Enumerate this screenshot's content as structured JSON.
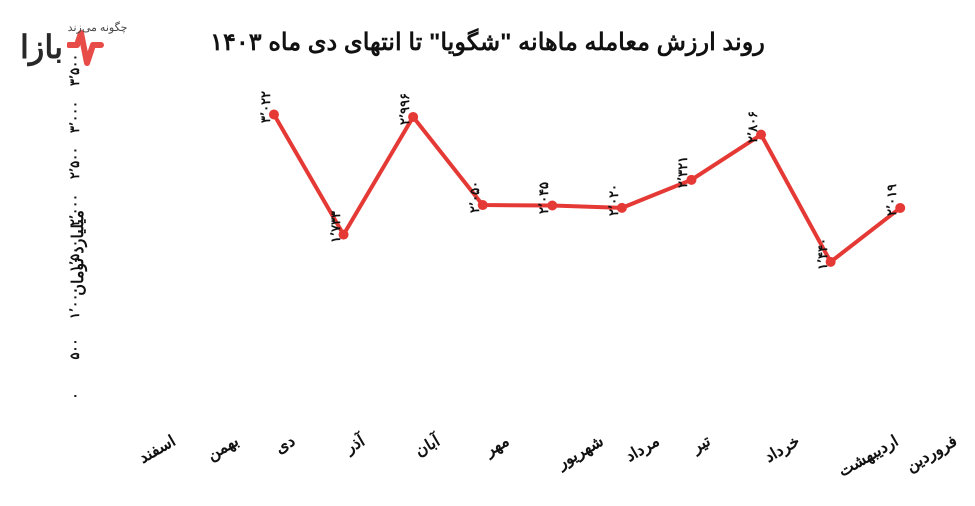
{
  "watermark": {
    "main": "بازا",
    "sub": "چگونه می‌زند"
  },
  "chart": {
    "type": "line",
    "title": "روند ارزش معامله ماهانه \"شگویا\" تا انتهای دی ماه ۱۴۰۳",
    "y_axis_label": "میلیارد تومان",
    "line_color": "#e53935",
    "line_width": 4,
    "marker_color": "#e53935",
    "marker_size": 5,
    "background_color": "#ffffff",
    "text_color": "#111111",
    "ylim": [
      0,
      3500
    ],
    "ytick_step": 500,
    "yticks": [
      {
        "v": 0,
        "label": "۰"
      },
      {
        "v": 500,
        "label": "۵۰۰"
      },
      {
        "v": 1000,
        "label": "۱٬۰۰۰"
      },
      {
        "v": 1500,
        "label": "۱٬۵۰۰"
      },
      {
        "v": 2000,
        "label": "۲٬۰۰۰"
      },
      {
        "v": 2500,
        "label": "۲٬۵۰۰"
      },
      {
        "v": 3000,
        "label": "۳٬۰۰۰"
      },
      {
        "v": 3500,
        "label": "۳٬۵۰۰"
      }
    ],
    "categories": [
      "فروردین",
      "اردیبهشت",
      "خرداد",
      "تیر",
      "مرداد",
      "شهریور",
      "مهر",
      "آبان",
      "آذر",
      "دی",
      "بهمن",
      "اسفند"
    ],
    "values": [
      2019,
      1440,
      2806,
      2321,
      2020,
      2045,
      2050,
      2996,
      1733,
      3022,
      null,
      null
    ],
    "value_labels": [
      "۲٬۰۱۹",
      "۱٬۴۴۰",
      "۲٬۸۰۶",
      "۲٬۳۲۱",
      "۲٬۰۲۰",
      "۲٬۰۴۵",
      "۲٬۰۵۰",
      "۲٬۹۹۶",
      "۱٬۷۳۳",
      "۳٬۰۲۲",
      null,
      null
    ],
    "title_fontsize": 24,
    "label_fontsize": 16,
    "tick_fontsize": 13
  }
}
